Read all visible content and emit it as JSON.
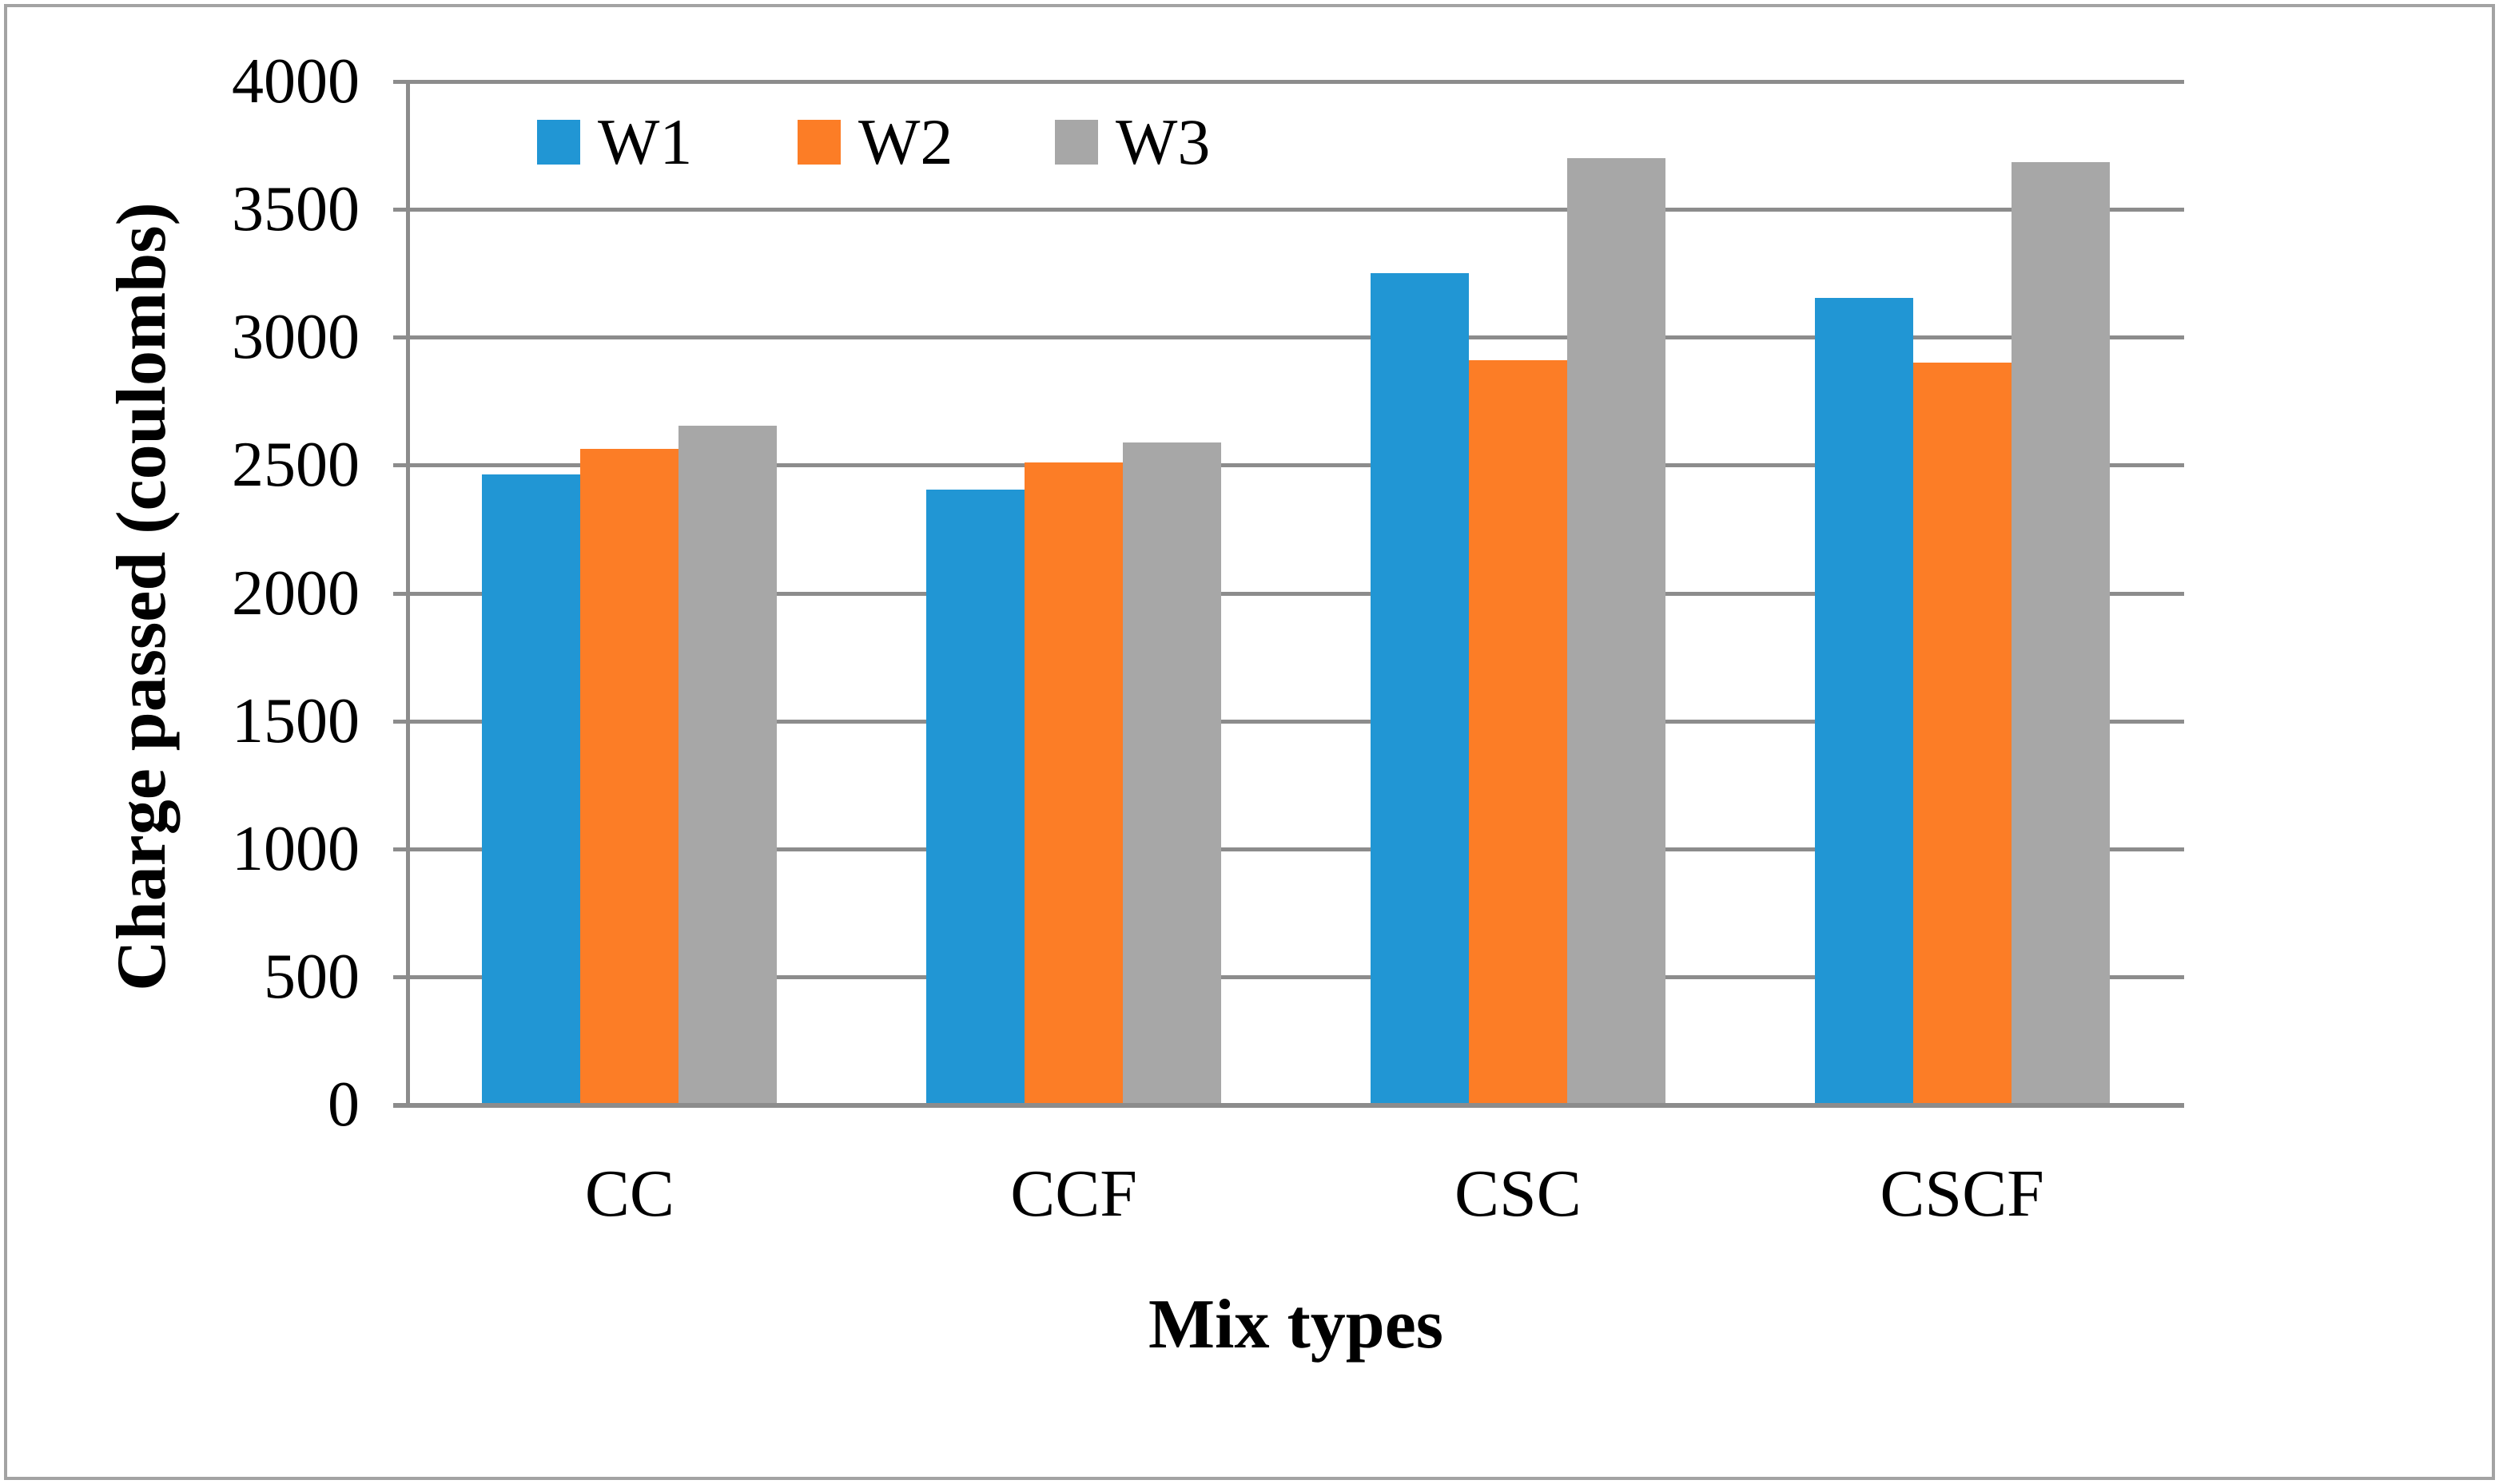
{
  "figure": {
    "background": "#ffffff",
    "border_color": "#a3a3a3"
  },
  "chart_data": {
    "type": "bar",
    "title": "",
    "categories": [
      "CC",
      "CCF",
      "CSC",
      "CSCF"
    ],
    "series": [
      {
        "name": "W1",
        "color": "#2196d4",
        "values": [
          2465,
          2405,
          3250,
          3155
        ]
      },
      {
        "name": "W2",
        "color": "#fc7d26",
        "values": [
          2565,
          2510,
          2910,
          2900
        ]
      },
      {
        "name": "W3",
        "color": "#a7a7a7",
        "values": [
          2655,
          2590,
          3700,
          3685
        ]
      }
    ],
    "xlabel": "Mix types",
    "ylabel": "Charge passed (coulombs)",
    "ylim": [
      0,
      4000
    ],
    "ytick_step": 500,
    "ytick_labels": [
      "0",
      "500",
      "1000",
      "1500",
      "2000",
      "2500",
      "3000",
      "3500",
      "4000"
    ],
    "grid": "horizontal",
    "gridline_color": "#8c8c8c",
    "axis_color": "#8c8c8c",
    "text_color": "#000000",
    "legend_position": "top-left-inside",
    "legend_entries": [
      "W1",
      "W2",
      "W3"
    ]
  }
}
